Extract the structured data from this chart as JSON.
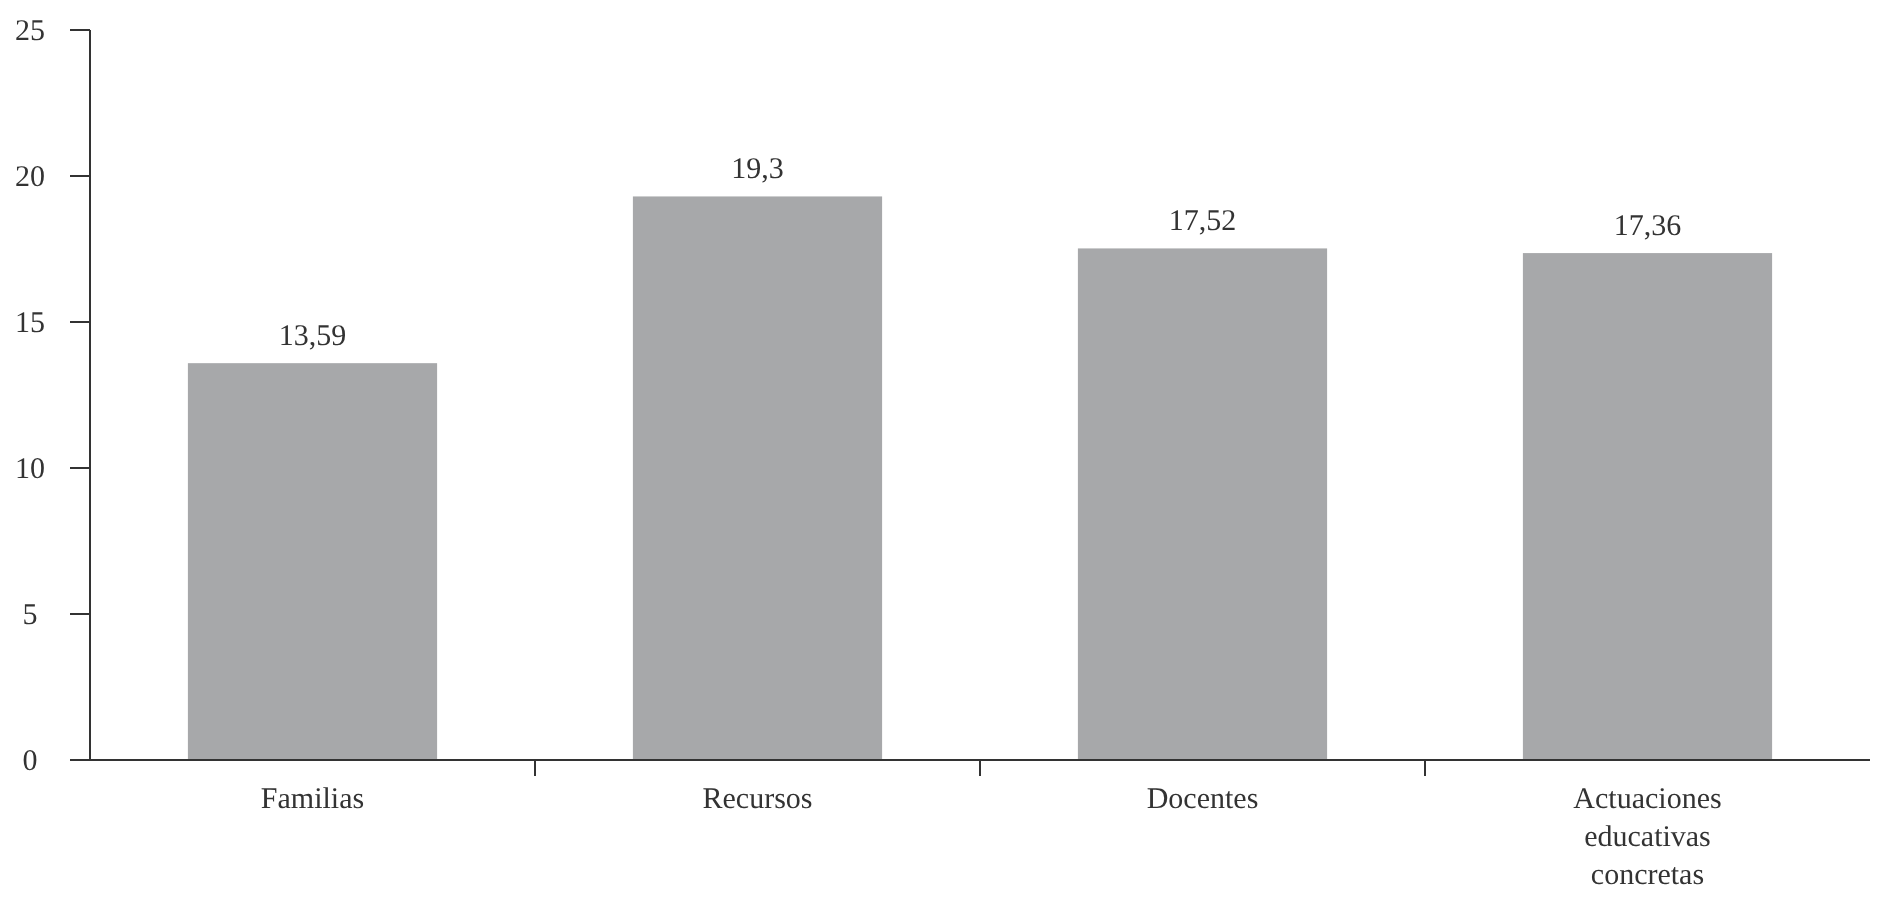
{
  "chart_data": {
    "type": "bar",
    "categories": [
      "Familias",
      "Recursos",
      "Docentes",
      "Actuaciones educativas concretas"
    ],
    "values": [
      13.59,
      19.3,
      17.52,
      17.36
    ],
    "value_labels": [
      "13,59",
      "19,3",
      "17,52",
      "17,36"
    ],
    "color": "#a7a8aa",
    "ylim": [
      0,
      25
    ],
    "yticks": [
      0,
      5,
      10,
      15,
      20,
      25
    ],
    "grid": false
  }
}
